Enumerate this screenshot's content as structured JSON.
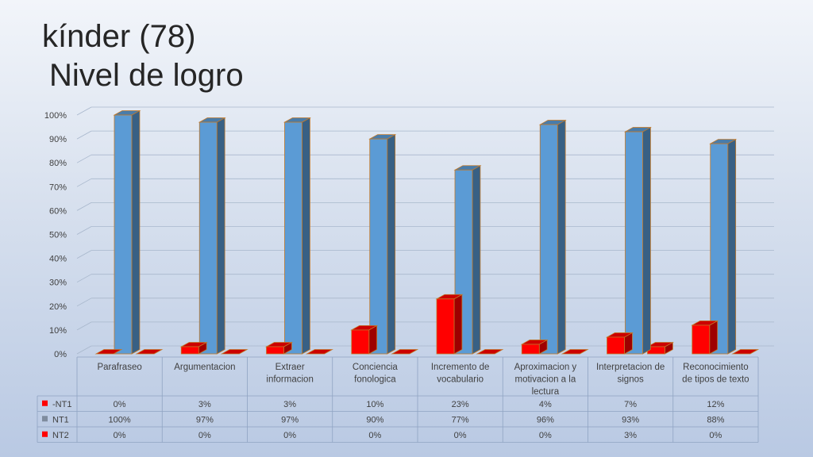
{
  "slide": {
    "title_line1": "kínder (78)",
    "title_line2": "Nivel de logro"
  },
  "colors": {
    "nt1_fill": "#5b9bd5",
    "nt2_fill": "#ff0000",
    "outline": "#c0782a",
    "grid": "#a8b7cc"
  },
  "chart_data": {
    "type": "bar",
    "title": "",
    "categories": [
      "Parafraseo",
      "Argumentacion",
      "Extraer informacion",
      "Conciencia fonologica",
      "Incremento de vocabulario",
      "Aproximacion y motivacion a la lectura",
      "Interpretacion de signos",
      "Reconocimiento de tipos de texto"
    ],
    "series": [
      {
        "name": "-NT1",
        "color": "#ff0000",
        "values": [
          0,
          3,
          3,
          10,
          23,
          4,
          7,
          12
        ],
        "labels": [
          "0%",
          "3%",
          "3%",
          "10%",
          "23%",
          "4%",
          "7%",
          "12%"
        ]
      },
      {
        "name": "NT1",
        "color": "#5b9bd5",
        "values": [
          100,
          97,
          97,
          90,
          77,
          96,
          93,
          88
        ],
        "labels": [
          "100%",
          "97%",
          "97%",
          "90%",
          "77%",
          "96%",
          "93%",
          "88%"
        ]
      },
      {
        "name": "NT2",
        "color": "#ff0000",
        "values": [
          0,
          0,
          0,
          0,
          0,
          0,
          3,
          0
        ],
        "labels": [
          "0%",
          "0%",
          "0%",
          "0%",
          "0%",
          "0%",
          "3%",
          "0%"
        ]
      }
    ],
    "ylim": [
      0,
      100
    ],
    "yticks": [
      "0%",
      "10%",
      "20%",
      "30%",
      "40%",
      "50%",
      "60%",
      "70%",
      "80%",
      "90%",
      "100%"
    ],
    "grid": true,
    "legend": "data table"
  }
}
